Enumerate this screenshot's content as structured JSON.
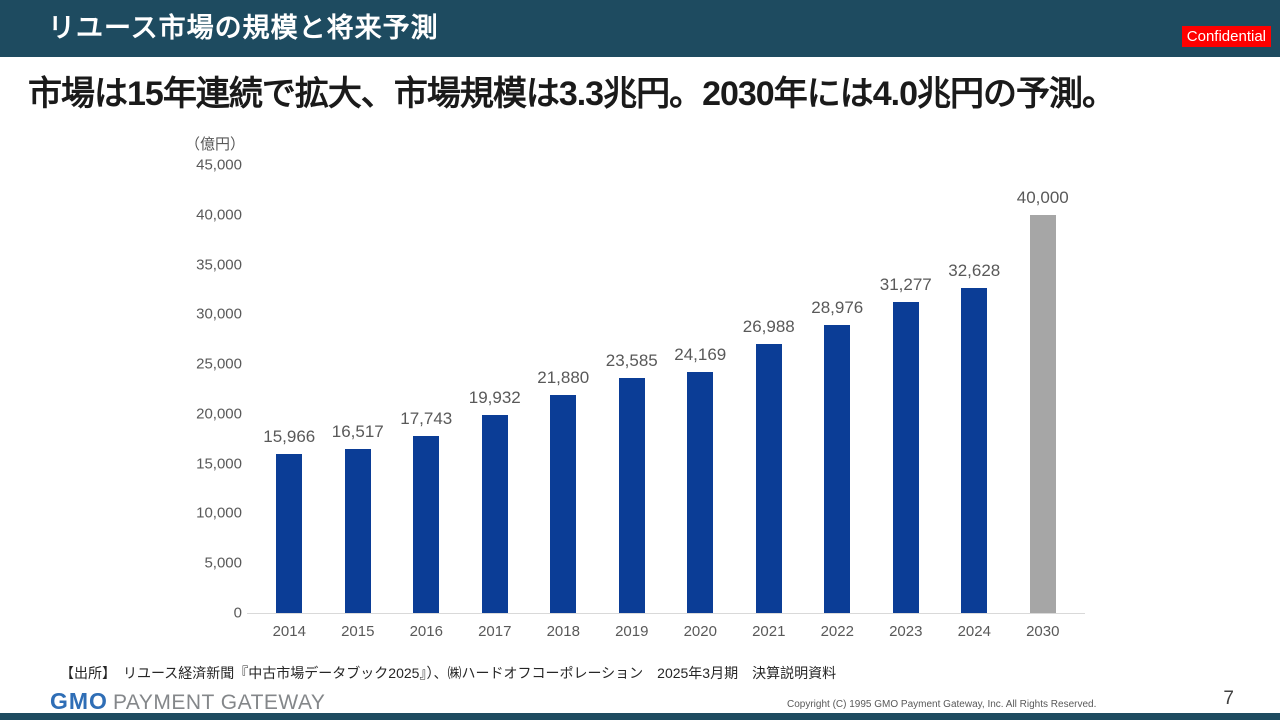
{
  "header": {
    "title": "リユース市場の規模と将来予測",
    "confidential_label": "Confidential",
    "bar_color": "#1E4B60",
    "confidential_bg": "#FF0000"
  },
  "headline": {
    "text": "市場は15年連続で拡大、市場規模は3.3兆円。2030年には4.0兆円の予測。"
  },
  "chart_data": {
    "type": "bar",
    "title": "",
    "unit_label": "（億円）",
    "categories": [
      "2014",
      "2015",
      "2016",
      "2017",
      "2018",
      "2019",
      "2020",
      "2021",
      "2022",
      "2023",
      "2024",
      "2030"
    ],
    "values": [
      15966,
      16517,
      17743,
      19932,
      21880,
      23585,
      24169,
      26988,
      28976,
      31277,
      32628,
      40000
    ],
    "value_labels": [
      "15,966",
      "16,517",
      "17,743",
      "19,932",
      "21,880",
      "23,585",
      "24,169",
      "26,988",
      "28,976",
      "31,277",
      "32,628",
      "40,000"
    ],
    "ylim": [
      0,
      45000
    ],
    "ytick_interval": 5000,
    "yticks": [
      "45,000",
      "40,000",
      "35,000",
      "30,000",
      "25,000",
      "20,000",
      "15,000",
      "10,000",
      "5,000",
      "0"
    ],
    "bar_color": "#0B3D96",
    "forecast_bar_color": "#A6A6A6",
    "forecast_index": 11,
    "grid": false,
    "legend": "none",
    "xlabel": "",
    "ylabel": "（億円）"
  },
  "source": {
    "text": "【出所】　リユース経済新聞『中古市場データブック2025』）、㈱ハードオフコーポレーション　2025年3月期　決算説明資料"
  },
  "footer": {
    "logo_gmo": "GMO",
    "logo_rest": "PAYMENT GATEWAY",
    "copyright": "Copyright (C) 1995 GMO Payment Gateway, Inc. All Rights Reserved.",
    "page_number": "7"
  }
}
